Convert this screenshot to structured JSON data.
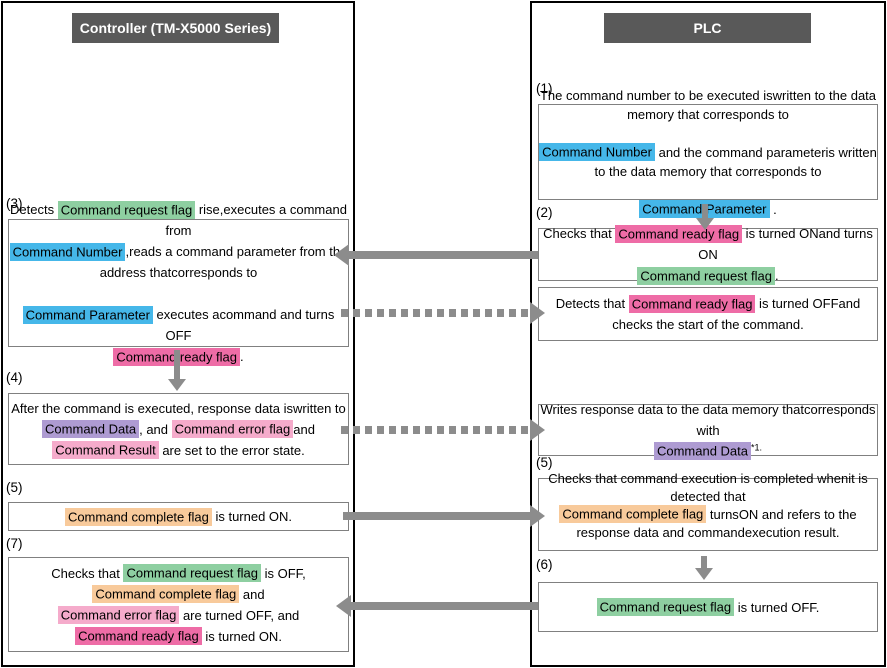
{
  "colors": {
    "blue": "#45b7e9",
    "green": "#8ecfa1",
    "pink": "#ee6ca6",
    "lightPink": "#f5abcb",
    "purple": "#ae9bd2",
    "orange": "#f8ca9b",
    "headerBg": "#595959",
    "headerText": "#ffffff",
    "arrow": "#8c8c8c",
    "boxBorder": "#808080",
    "outerBorder": "#000000"
  },
  "left_panel": {
    "title": "Controller (TM-X5000 Series)",
    "boxes": [
      {
        "label": "(3)",
        "segments": [
          {
            "t": "Detects "
          },
          {
            "t": "Command request flag",
            "hl": "green"
          },
          {
            "t": " rise,\nexecutes a command from "
          },
          {
            "t": "Command Number",
            "hl": "blue"
          },
          {
            "t": ",\nreads a command parameter from the address that\ncorresponds to "
          },
          {
            "t": "Command Parameter",
            "hl": "blue"
          },
          {
            "t": " executes a\ncommand and turns OFF "
          },
          {
            "t": "Command ready flag",
            "hl": "pink"
          },
          {
            "t": "."
          }
        ]
      },
      {
        "label": "(4)",
        "segments": [
          {
            "t": "After the command is executed, response data is\nwritten to "
          },
          {
            "t": "Command Data",
            "hl": "purple"
          },
          {
            "t": ", and "
          },
          {
            "t": "Command error flag",
            "hl": "lightPink"
          },
          {
            "t": "\nand "
          },
          {
            "t": "Command Result",
            "hl": "lightPink"
          },
          {
            "t": " are set to the error state."
          }
        ]
      },
      {
        "label": "(5)",
        "segments": [
          {
            "t": "Command complete flag",
            "hl": "orange"
          },
          {
            "t": " is turned ON."
          }
        ]
      },
      {
        "label": "(7)",
        "segments": [
          {
            "t": "Checks that "
          },
          {
            "t": "Command request flag",
            "hl": "green"
          },
          {
            "t": " is OFF,\n"
          },
          {
            "t": "Command complete flag",
            "hl": "orange"
          },
          {
            "t": " and\n"
          },
          {
            "t": "Command error flag",
            "hl": "lightPink"
          },
          {
            "t": " are turned OFF, and\n"
          },
          {
            "t": "Command ready flag",
            "hl": "pink"
          },
          {
            "t": " is turned ON."
          }
        ]
      }
    ]
  },
  "right_panel": {
    "title": "PLC",
    "boxes": [
      {
        "label": "(1)",
        "segments": [
          {
            "t": "The command number to be executed is\nwritten to the data memory that corresponds to\n"
          },
          {
            "t": "Command Number",
            "hl": "blue"
          },
          {
            "t": " and the command parameter\nis written to the data memory that corresponds to\n"
          },
          {
            "t": "Command Parameter",
            "hl": "blue"
          },
          {
            "t": " ."
          }
        ]
      },
      {
        "label": "(2)",
        "segments": [
          {
            "t": "Checks that "
          },
          {
            "t": "Command ready flag",
            "hl": "pink"
          },
          {
            "t": " is turned ON\nand turns ON "
          },
          {
            "t": "Command request flag",
            "hl": "green"
          },
          {
            "t": "."
          }
        ]
      },
      {
        "label": "",
        "segments": [
          {
            "t": "Detects that "
          },
          {
            "t": "Command ready flag",
            "hl": "pink"
          },
          {
            "t": " is turned OFF\nand checks the start of the command."
          }
        ]
      },
      {
        "label": "",
        "segments": [
          {
            "t": "Writes response data to the data memory that\ncorresponds with "
          },
          {
            "t": "Command Data",
            "hl": "purple"
          },
          {
            "t": "*1.",
            "sup": true
          }
        ]
      },
      {
        "label": "(5)",
        "segments": [
          {
            "t": "Checks that command execution is completed when\nit is detected that "
          },
          {
            "t": "Command complete flag",
            "hl": "orange"
          },
          {
            "t": " turns\nON and refers to the response data and command\nexecution result."
          }
        ]
      },
      {
        "label": "(6)",
        "segments": [
          {
            "t": "Command request flag",
            "hl": "green"
          },
          {
            "t": " is turned OFF."
          }
        ]
      }
    ]
  },
  "arrows": [
    {
      "id": "a1",
      "style": "solid",
      "direction": "left",
      "from": "plc-box-2",
      "to": "controller-box-3"
    },
    {
      "id": "a2",
      "style": "dotted",
      "direction": "right",
      "from": "controller-box-3",
      "to": "plc-box-ready-off"
    },
    {
      "id": "a3",
      "style": "dotted",
      "direction": "right",
      "from": "controller-box-4",
      "to": "plc-box-writes"
    },
    {
      "id": "a4",
      "style": "solid",
      "direction": "right",
      "from": "controller-box-5",
      "to": "plc-box-5"
    },
    {
      "id": "a5",
      "style": "solid",
      "direction": "left",
      "from": "plc-box-6",
      "to": "controller-box-7"
    },
    {
      "id": "v1",
      "style": "solid",
      "direction": "down",
      "from": "plc-box-1",
      "to": "plc-box-2"
    },
    {
      "id": "v2",
      "style": "solid",
      "direction": "down",
      "from": "controller-box-3",
      "to": "controller-box-4"
    },
    {
      "id": "v3",
      "style": "solid",
      "direction": "down",
      "from": "plc-box-5",
      "to": "plc-box-6"
    }
  ]
}
